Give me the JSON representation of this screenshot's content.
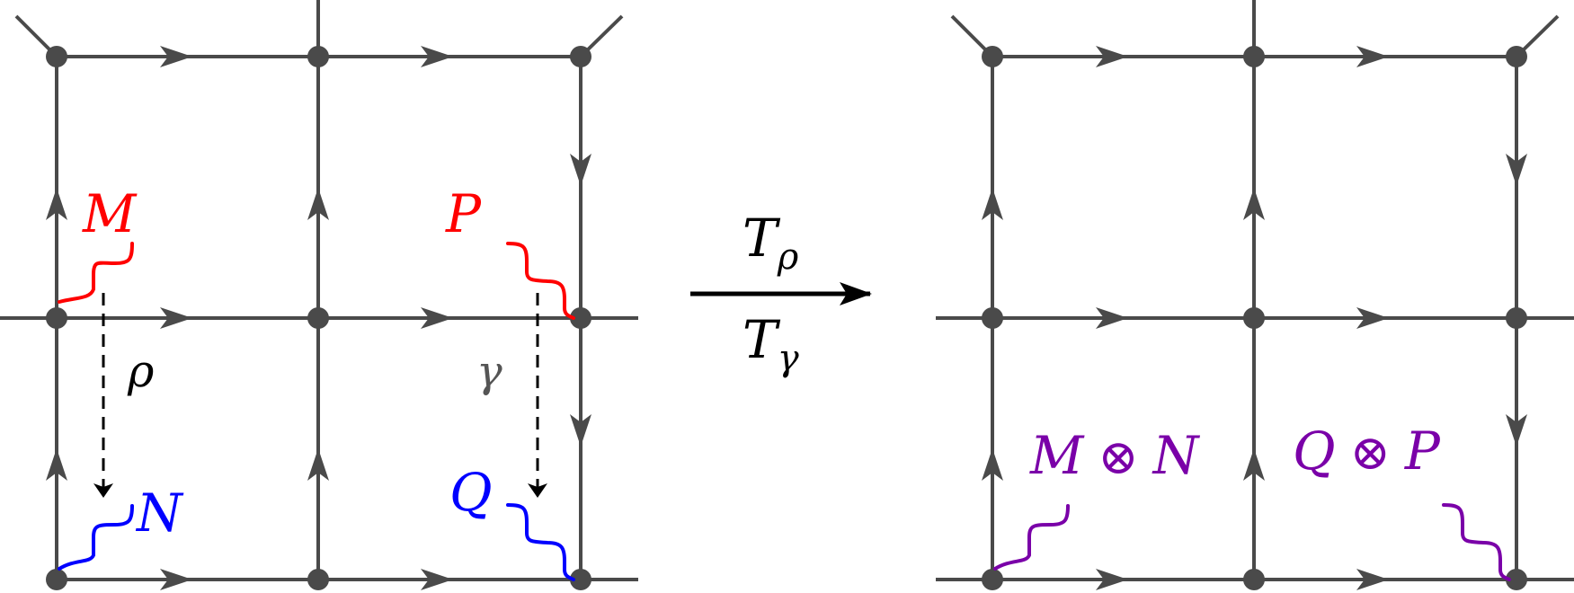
{
  "colors": {
    "lattice": "#4a4a4a",
    "vertex": "#4a4a4a",
    "excitation_M": "#ff0000",
    "excitation_P": "#ff0000",
    "excitation_N": "#0000ff",
    "excitation_Q": "#0000ff",
    "fused": "#7a00a8",
    "label_rho": "#000000",
    "label_gamma": "#555555",
    "transform_arrow": "#000000"
  },
  "left_panel": {
    "label_M": "M",
    "label_N": "N",
    "label_P": "P",
    "label_Q": "Q",
    "label_rho": "ρ",
    "label_gamma": "γ"
  },
  "transform": {
    "top_base": "T",
    "top_sub": "ρ",
    "bottom_base": "T",
    "bottom_sub": "γ"
  },
  "right_panel": {
    "fused_left": {
      "a": "M",
      "op": "⊗",
      "b": "N"
    },
    "fused_right": {
      "a": "Q",
      "op": "⊗",
      "b": "P"
    }
  }
}
